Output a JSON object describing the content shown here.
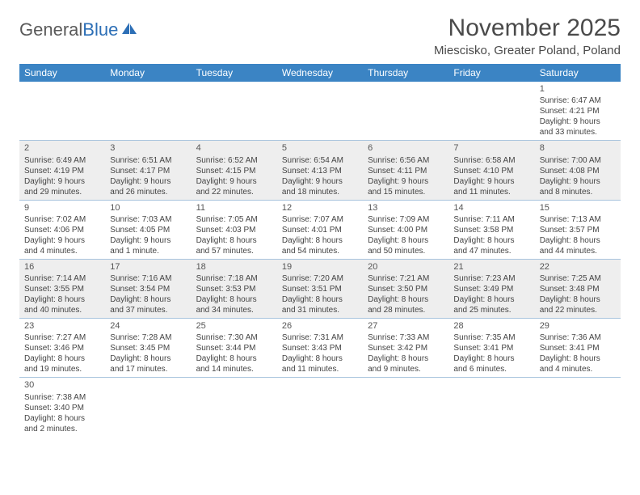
{
  "logo": {
    "text1": "General",
    "text2": "Blue"
  },
  "title": "November 2025",
  "subtitle": "Miescisko, Greater Poland, Poland",
  "colors": {
    "header_bg": "#3b84c4",
    "header_fg": "#ffffff",
    "alt_row_bg": "#eeeeee",
    "border": "#a8c4dd",
    "text": "#444444",
    "title_color": "#4a4a4a"
  },
  "days_of_week": [
    "Sunday",
    "Monday",
    "Tuesday",
    "Wednesday",
    "Thursday",
    "Friday",
    "Saturday"
  ],
  "layout": {
    "columns": 7,
    "rows": 6,
    "first_weekday_index": 6,
    "days_in_month": 30
  },
  "cells": [
    {
      "n": "1",
      "sr": "Sunrise: 6:47 AM",
      "ss": "Sunset: 4:21 PM",
      "d1": "Daylight: 9 hours",
      "d2": "and 33 minutes."
    },
    {
      "n": "2",
      "sr": "Sunrise: 6:49 AM",
      "ss": "Sunset: 4:19 PM",
      "d1": "Daylight: 9 hours",
      "d2": "and 29 minutes."
    },
    {
      "n": "3",
      "sr": "Sunrise: 6:51 AM",
      "ss": "Sunset: 4:17 PM",
      "d1": "Daylight: 9 hours",
      "d2": "and 26 minutes."
    },
    {
      "n": "4",
      "sr": "Sunrise: 6:52 AM",
      "ss": "Sunset: 4:15 PM",
      "d1": "Daylight: 9 hours",
      "d2": "and 22 minutes."
    },
    {
      "n": "5",
      "sr": "Sunrise: 6:54 AM",
      "ss": "Sunset: 4:13 PM",
      "d1": "Daylight: 9 hours",
      "d2": "and 18 minutes."
    },
    {
      "n": "6",
      "sr": "Sunrise: 6:56 AM",
      "ss": "Sunset: 4:11 PM",
      "d1": "Daylight: 9 hours",
      "d2": "and 15 minutes."
    },
    {
      "n": "7",
      "sr": "Sunrise: 6:58 AM",
      "ss": "Sunset: 4:10 PM",
      "d1": "Daylight: 9 hours",
      "d2": "and 11 minutes."
    },
    {
      "n": "8",
      "sr": "Sunrise: 7:00 AM",
      "ss": "Sunset: 4:08 PM",
      "d1": "Daylight: 9 hours",
      "d2": "and 8 minutes."
    },
    {
      "n": "9",
      "sr": "Sunrise: 7:02 AM",
      "ss": "Sunset: 4:06 PM",
      "d1": "Daylight: 9 hours",
      "d2": "and 4 minutes."
    },
    {
      "n": "10",
      "sr": "Sunrise: 7:03 AM",
      "ss": "Sunset: 4:05 PM",
      "d1": "Daylight: 9 hours",
      "d2": "and 1 minute."
    },
    {
      "n": "11",
      "sr": "Sunrise: 7:05 AM",
      "ss": "Sunset: 4:03 PM",
      "d1": "Daylight: 8 hours",
      "d2": "and 57 minutes."
    },
    {
      "n": "12",
      "sr": "Sunrise: 7:07 AM",
      "ss": "Sunset: 4:01 PM",
      "d1": "Daylight: 8 hours",
      "d2": "and 54 minutes."
    },
    {
      "n": "13",
      "sr": "Sunrise: 7:09 AM",
      "ss": "Sunset: 4:00 PM",
      "d1": "Daylight: 8 hours",
      "d2": "and 50 minutes."
    },
    {
      "n": "14",
      "sr": "Sunrise: 7:11 AM",
      "ss": "Sunset: 3:58 PM",
      "d1": "Daylight: 8 hours",
      "d2": "and 47 minutes."
    },
    {
      "n": "15",
      "sr": "Sunrise: 7:13 AM",
      "ss": "Sunset: 3:57 PM",
      "d1": "Daylight: 8 hours",
      "d2": "and 44 minutes."
    },
    {
      "n": "16",
      "sr": "Sunrise: 7:14 AM",
      "ss": "Sunset: 3:55 PM",
      "d1": "Daylight: 8 hours",
      "d2": "and 40 minutes."
    },
    {
      "n": "17",
      "sr": "Sunrise: 7:16 AM",
      "ss": "Sunset: 3:54 PM",
      "d1": "Daylight: 8 hours",
      "d2": "and 37 minutes."
    },
    {
      "n": "18",
      "sr": "Sunrise: 7:18 AM",
      "ss": "Sunset: 3:53 PM",
      "d1": "Daylight: 8 hours",
      "d2": "and 34 minutes."
    },
    {
      "n": "19",
      "sr": "Sunrise: 7:20 AM",
      "ss": "Sunset: 3:51 PM",
      "d1": "Daylight: 8 hours",
      "d2": "and 31 minutes."
    },
    {
      "n": "20",
      "sr": "Sunrise: 7:21 AM",
      "ss": "Sunset: 3:50 PM",
      "d1": "Daylight: 8 hours",
      "d2": "and 28 minutes."
    },
    {
      "n": "21",
      "sr": "Sunrise: 7:23 AM",
      "ss": "Sunset: 3:49 PM",
      "d1": "Daylight: 8 hours",
      "d2": "and 25 minutes."
    },
    {
      "n": "22",
      "sr": "Sunrise: 7:25 AM",
      "ss": "Sunset: 3:48 PM",
      "d1": "Daylight: 8 hours",
      "d2": "and 22 minutes."
    },
    {
      "n": "23",
      "sr": "Sunrise: 7:27 AM",
      "ss": "Sunset: 3:46 PM",
      "d1": "Daylight: 8 hours",
      "d2": "and 19 minutes."
    },
    {
      "n": "24",
      "sr": "Sunrise: 7:28 AM",
      "ss": "Sunset: 3:45 PM",
      "d1": "Daylight: 8 hours",
      "d2": "and 17 minutes."
    },
    {
      "n": "25",
      "sr": "Sunrise: 7:30 AM",
      "ss": "Sunset: 3:44 PM",
      "d1": "Daylight: 8 hours",
      "d2": "and 14 minutes."
    },
    {
      "n": "26",
      "sr": "Sunrise: 7:31 AM",
      "ss": "Sunset: 3:43 PM",
      "d1": "Daylight: 8 hours",
      "d2": "and 11 minutes."
    },
    {
      "n": "27",
      "sr": "Sunrise: 7:33 AM",
      "ss": "Sunset: 3:42 PM",
      "d1": "Daylight: 8 hours",
      "d2": "and 9 minutes."
    },
    {
      "n": "28",
      "sr": "Sunrise: 7:35 AM",
      "ss": "Sunset: 3:41 PM",
      "d1": "Daylight: 8 hours",
      "d2": "and 6 minutes."
    },
    {
      "n": "29",
      "sr": "Sunrise: 7:36 AM",
      "ss": "Sunset: 3:41 PM",
      "d1": "Daylight: 8 hours",
      "d2": "and 4 minutes."
    },
    {
      "n": "30",
      "sr": "Sunrise: 7:38 AM",
      "ss": "Sunset: 3:40 PM",
      "d1": "Daylight: 8 hours",
      "d2": "and 2 minutes."
    }
  ]
}
